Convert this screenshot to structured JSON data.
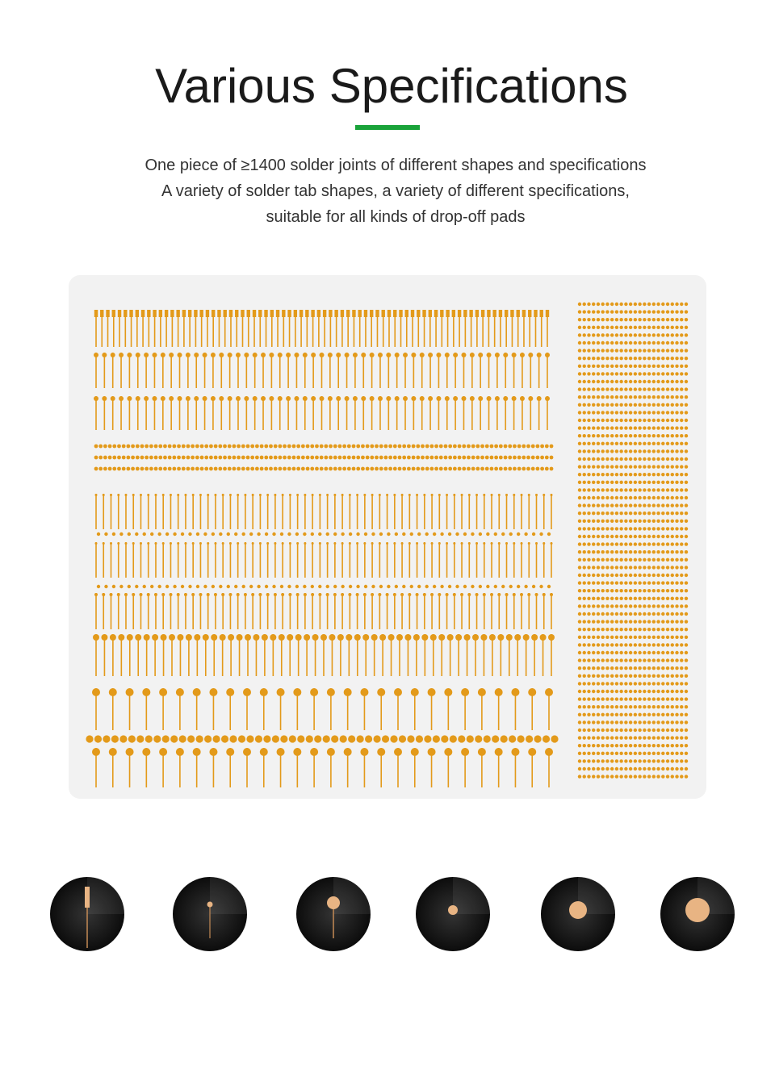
{
  "header": {
    "title": "Various Specifications",
    "lines": [
      "One piece of ≥1400 solder joints of different shapes and specifications",
      "A variety of solder tab shapes, a variety of different specifications,",
      "suitable for all kinds of drop-off pads"
    ]
  }
}
